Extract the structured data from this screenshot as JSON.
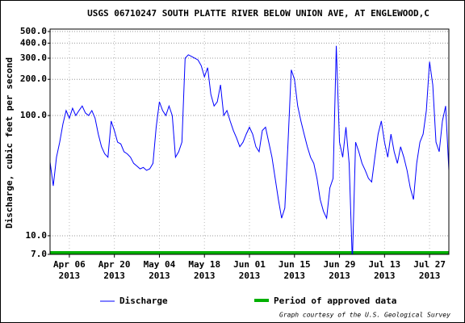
{
  "chart_data": {
    "type": "line",
    "title": "USGS 06710247 SOUTH PLATTE RIVER BELOW UNION AVE, AT ENGLEWOOD,C",
    "y_label": "Discharge, cubic feet per second",
    "log_y": true,
    "grid": true,
    "credit": "Graph courtesy of the U.S. Geological Survey",
    "xlim": [
      "2013-03-31",
      "2013-08-02"
    ],
    "ylim": [
      7,
      500
    ],
    "yticks": [
      {
        "value": 7,
        "label": "7.0"
      },
      {
        "value": 10,
        "label": "10.0"
      },
      {
        "value": 100,
        "label": "100.0"
      },
      {
        "value": 200,
        "label": "200.0"
      },
      {
        "value": 300,
        "label": "300.0"
      },
      {
        "value": 400,
        "label": "400.0"
      },
      {
        "value": 500,
        "label": "500.0"
      }
    ],
    "xticks": [
      {
        "value": "2013-04-06",
        "label": [
          "Apr 06",
          "2013"
        ]
      },
      {
        "value": "2013-04-20",
        "label": [
          "Apr 20",
          "2013"
        ]
      },
      {
        "value": "2013-05-04",
        "label": [
          "May 04",
          "2013"
        ]
      },
      {
        "value": "2013-05-18",
        "label": [
          "May 18",
          "2013"
        ]
      },
      {
        "value": "2013-06-01",
        "label": [
          "Jun 01",
          "2013"
        ]
      },
      {
        "value": "2013-06-15",
        "label": [
          "Jun 15",
          "2013"
        ]
      },
      {
        "value": "2013-06-29",
        "label": [
          "Jun 29",
          "2013"
        ]
      },
      {
        "value": "2013-07-13",
        "label": [
          "Jul 13",
          "2013"
        ]
      },
      {
        "value": "2013-07-27",
        "label": [
          "Jul 27",
          "2013"
        ]
      }
    ],
    "x": [
      "2013-03-31",
      "2013-04-01",
      "2013-04-02",
      "2013-04-03",
      "2013-04-04",
      "2013-04-05",
      "2013-04-06",
      "2013-04-07",
      "2013-04-08",
      "2013-04-09",
      "2013-04-10",
      "2013-04-11",
      "2013-04-12",
      "2013-04-13",
      "2013-04-14",
      "2013-04-15",
      "2013-04-16",
      "2013-04-17",
      "2013-04-18",
      "2013-04-19",
      "2013-04-20",
      "2013-04-21",
      "2013-04-22",
      "2013-04-23",
      "2013-04-24",
      "2013-04-25",
      "2013-04-26",
      "2013-04-27",
      "2013-04-28",
      "2013-04-29",
      "2013-04-30",
      "2013-05-01",
      "2013-05-02",
      "2013-05-03",
      "2013-05-04",
      "2013-05-05",
      "2013-05-06",
      "2013-05-07",
      "2013-05-08",
      "2013-05-09",
      "2013-05-10",
      "2013-05-11",
      "2013-05-12",
      "2013-05-13",
      "2013-05-14",
      "2013-05-15",
      "2013-05-16",
      "2013-05-17",
      "2013-05-18",
      "2013-05-19",
      "2013-05-20",
      "2013-05-21",
      "2013-05-22",
      "2013-05-23",
      "2013-05-24",
      "2013-05-25",
      "2013-05-26",
      "2013-05-27",
      "2013-05-28",
      "2013-05-29",
      "2013-05-30",
      "2013-05-31",
      "2013-06-01",
      "2013-06-02",
      "2013-06-03",
      "2013-06-04",
      "2013-06-05",
      "2013-06-06",
      "2013-06-07",
      "2013-06-08",
      "2013-06-09",
      "2013-06-10",
      "2013-06-11",
      "2013-06-12",
      "2013-06-13",
      "2013-06-14",
      "2013-06-15",
      "2013-06-16",
      "2013-06-17",
      "2013-06-18",
      "2013-06-19",
      "2013-06-20",
      "2013-06-21",
      "2013-06-22",
      "2013-06-23",
      "2013-06-24",
      "2013-06-25",
      "2013-06-26",
      "2013-06-27",
      "2013-06-28",
      "2013-06-29",
      "2013-06-30",
      "2013-07-01",
      "2013-07-02",
      "2013-07-03",
      "2013-07-04",
      "2013-07-05",
      "2013-07-06",
      "2013-07-07",
      "2013-07-08",
      "2013-07-09",
      "2013-07-10",
      "2013-07-11",
      "2013-07-12",
      "2013-07-13",
      "2013-07-14",
      "2013-07-15",
      "2013-07-16",
      "2013-07-17",
      "2013-07-18",
      "2013-07-19",
      "2013-07-20",
      "2013-07-21",
      "2013-07-22",
      "2013-07-23",
      "2013-07-24",
      "2013-07-25",
      "2013-07-26",
      "2013-07-27",
      "2013-07-28",
      "2013-07-29",
      "2013-07-30",
      "2013-07-31",
      "2013-08-01",
      "2013-08-02"
    ],
    "series": [
      {
        "name": "Discharge",
        "color": "#0000ff",
        "values": [
          41,
          26,
          45,
          60,
          85,
          110,
          95,
          115,
          100,
          110,
          120,
          105,
          100,
          110,
          95,
          70,
          55,
          48,
          45,
          90,
          75,
          60,
          58,
          50,
          48,
          45,
          40,
          38,
          36,
          37,
          35,
          36,
          40,
          80,
          130,
          110,
          100,
          120,
          100,
          45,
          50,
          60,
          300,
          320,
          310,
          300,
          290,
          260,
          210,
          250,
          150,
          120,
          130,
          180,
          100,
          110,
          90,
          75,
          65,
          55,
          60,
          70,
          80,
          70,
          55,
          50,
          75,
          80,
          60,
          45,
          30,
          20,
          14,
          17,
          60,
          240,
          200,
          120,
          90,
          70,
          55,
          45,
          40,
          30,
          20,
          16,
          14,
          25,
          30,
          380,
          60,
          45,
          80,
          40,
          6,
          60,
          50,
          40,
          35,
          30,
          28,
          45,
          70,
          90,
          60,
          45,
          70,
          50,
          40,
          55,
          45,
          35,
          25,
          20,
          40,
          60,
          70,
          110,
          280,
          180,
          60,
          50,
          90,
          120,
          35
        ]
      }
    ],
    "approved": {
      "name": "Period of approved data",
      "color": "#00b000"
    }
  }
}
